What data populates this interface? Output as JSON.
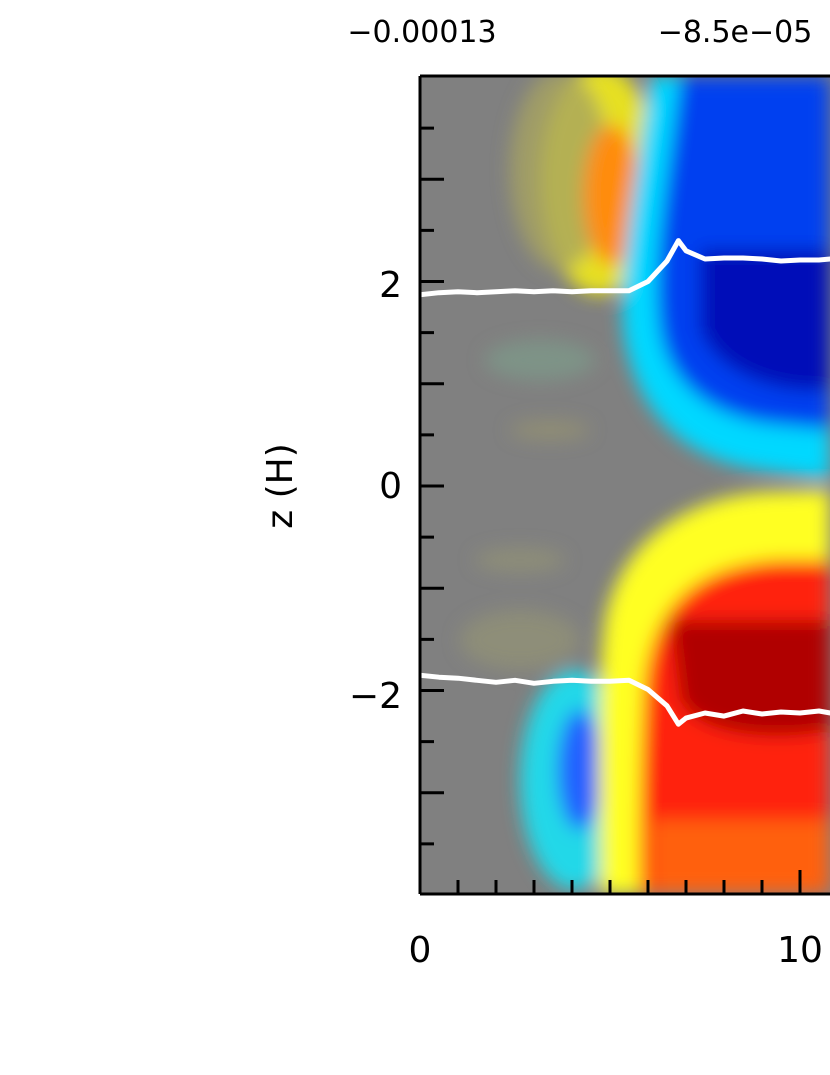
{
  "chart_data": {
    "type": "heatmap",
    "colorbar": {
      "tick_labels": [
        "−0.00013",
        "−8.5e−05"
      ]
    },
    "ylabel": "z (H)",
    "xlabel": "",
    "x_tick_labels": [
      "0",
      "10"
    ],
    "y_tick_labels": [
      "2",
      "0",
      "−2"
    ],
    "y_ticks": [
      2,
      0,
      -2
    ],
    "x_ticks": [
      0,
      10
    ],
    "ylim": [
      -4,
      4
    ],
    "xlim_visible": [
      0,
      10.8
    ],
    "grid": false,
    "field_colors": {
      "background": "#808080",
      "strong_negative": "#0010c0",
      "negative": "#0030ff",
      "weak_negative": "#00e0ff",
      "weak_positive": "#ffff20",
      "positive": "#ff1010",
      "strong_positive": "#b00000",
      "contour": "#ffffff"
    },
    "series": [
      {
        "x": [
          0,
          0.5,
          1,
          1.5,
          2,
          2.5,
          3,
          3.5,
          4,
          4.5,
          5,
          5.5,
          6,
          6.5,
          6.8,
          7,
          7.5,
          8,
          8.5,
          9,
          9.5,
          10,
          10.5,
          10.8
        ],
        "y": [
          1.87,
          1.89,
          1.9,
          1.89,
          1.9,
          1.91,
          1.9,
          1.91,
          1.9,
          1.91,
          1.91,
          1.91,
          2.0,
          2.2,
          2.4,
          2.3,
          2.22,
          2.23,
          2.23,
          2.22,
          2.2,
          2.21,
          2.21,
          2.22
        ]
      },
      {
        "x": [
          0,
          0.5,
          1,
          1.5,
          2,
          2.5,
          3,
          3.5,
          4,
          4.5,
          5,
          5.5,
          6,
          6.5,
          6.8,
          7,
          7.5,
          8,
          8.5,
          9,
          9.5,
          10,
          10.5,
          10.8
        ],
        "y": [
          -1.85,
          -1.87,
          -1.88,
          -1.9,
          -1.92,
          -1.9,
          -1.93,
          -1.91,
          -1.9,
          -1.91,
          -1.91,
          -1.9,
          -1.99,
          -2.15,
          -2.33,
          -2.27,
          -2.22,
          -2.25,
          -2.2,
          -2.23,
          -2.21,
          -2.22,
          -2.2,
          -2.22
        ]
      }
    ]
  }
}
